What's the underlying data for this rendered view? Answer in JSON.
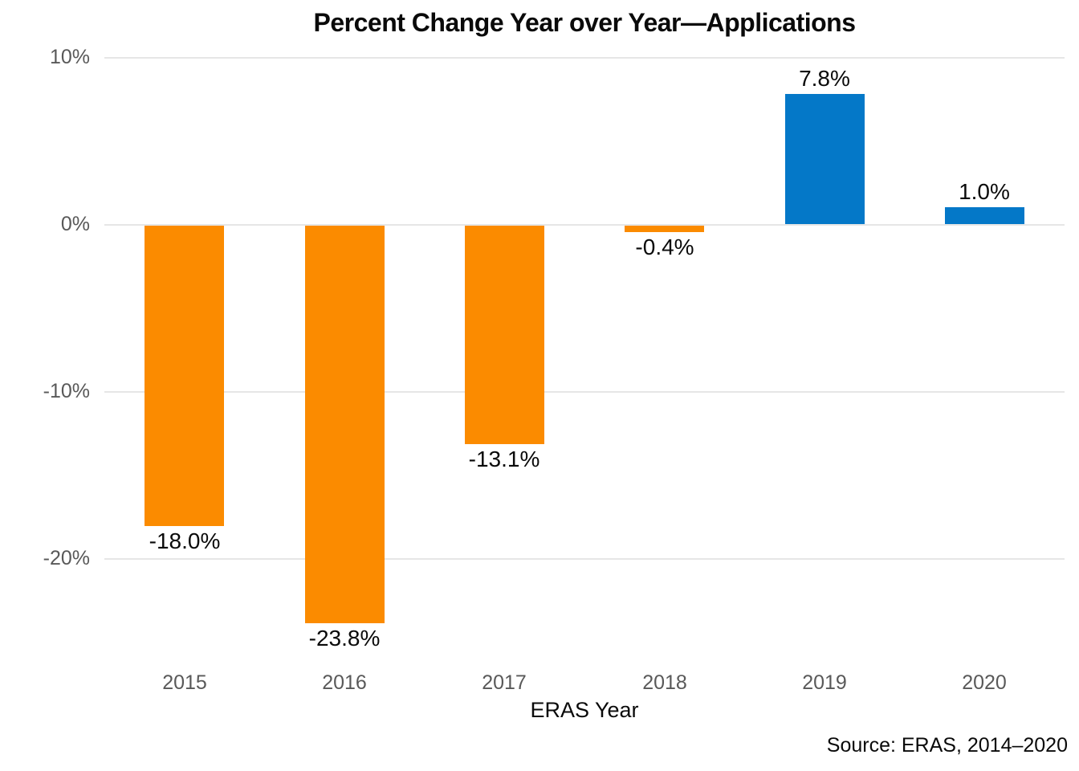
{
  "chart_data": {
    "type": "bar",
    "title": "Percent Change Year over Year—Applications",
    "xlabel": "ERAS Year",
    "ylabel": "",
    "source": "Source: ERAS, 2014–2020",
    "categories": [
      "2015",
      "2016",
      "2017",
      "2018",
      "2019",
      "2020"
    ],
    "values": [
      -18.0,
      -23.8,
      -13.1,
      -0.4,
      7.8,
      1.0
    ],
    "bar_labels": [
      "-18.0%",
      "-23.8%",
      "-13.1%",
      "-0.4%",
      "7.8%",
      "1.0%"
    ],
    "yticks": [
      {
        "value": 10,
        "label": "10%"
      },
      {
        "value": 0,
        "label": "0%"
      },
      {
        "value": -10,
        "label": "-10%"
      },
      {
        "value": -20,
        "label": "-20%"
      }
    ],
    "ylim": [
      -26.5,
      10.5
    ],
    "grid": true,
    "legend": "none",
    "colors": {
      "positive": "#0478C8",
      "negative": "#FB8B00"
    },
    "gridline_color": "#E6E6E6",
    "tick_color": "#595959",
    "label_color": "#0a0a0a"
  }
}
